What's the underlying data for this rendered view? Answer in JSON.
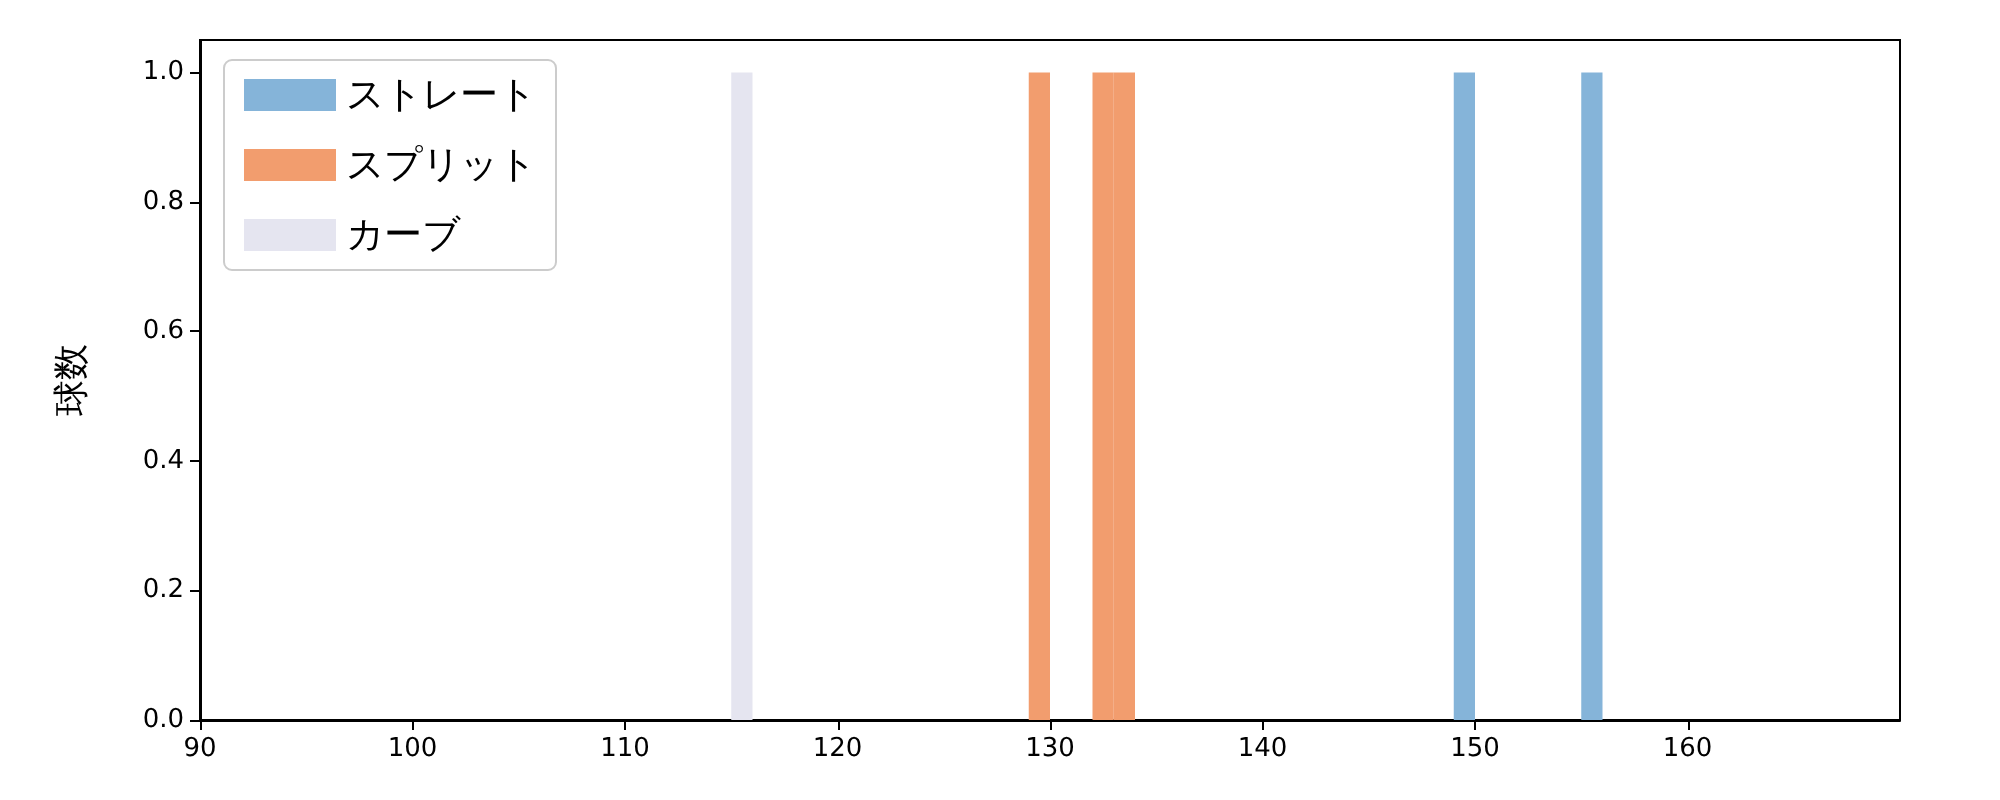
{
  "chart_data": {
    "type": "histogram",
    "ylabel": "球数",
    "bins": [
      115,
      116,
      117,
      118,
      119,
      120,
      121,
      122,
      123,
      124,
      125,
      126,
      127,
      128,
      129,
      130,
      131,
      132,
      133,
      134,
      135,
      136,
      137,
      138,
      139,
      140,
      141,
      142,
      143,
      144,
      145,
      146,
      147,
      148,
      149,
      150,
      151,
      152,
      153,
      154,
      155,
      156
    ],
    "series": [
      {
        "name": "ストレート",
        "color": "#85b4d9",
        "values": [
          0,
          0,
          0,
          0,
          0,
          0,
          0,
          0,
          0,
          0,
          0,
          0,
          0,
          0,
          0,
          0,
          0,
          0,
          0,
          0,
          0,
          0,
          0,
          0,
          0,
          0,
          0,
          0,
          0,
          0,
          0,
          0,
          0,
          0,
          1,
          0,
          0,
          0,
          0,
          0,
          1
        ]
      },
      {
        "name": "スプリット",
        "color": "#f29d6e",
        "values": [
          0,
          0,
          0,
          0,
          0,
          0,
          0,
          0,
          0,
          0,
          0,
          0,
          0,
          0,
          1,
          0,
          0,
          1,
          1,
          0,
          0,
          0,
          0,
          0,
          0,
          0,
          0,
          0,
          0,
          0,
          0,
          0,
          0,
          0,
          0,
          0,
          0,
          0,
          0,
          0,
          0
        ]
      },
      {
        "name": "カーブ",
        "color": "#e5e5f0",
        "values": [
          1,
          0,
          0,
          0,
          0,
          0,
          0,
          0,
          0,
          0,
          0,
          0,
          0,
          0,
          0,
          0,
          0,
          0,
          0,
          0,
          0,
          0,
          0,
          0,
          0,
          0,
          0,
          0,
          0,
          0,
          0,
          0,
          0,
          0,
          0,
          0,
          0,
          0,
          0,
          0,
          0
        ]
      }
    ],
    "xlim": [
      90,
      170
    ],
    "xticks": [
      90,
      100,
      110,
      120,
      130,
      140,
      150,
      160
    ],
    "ylim": [
      0,
      1.05
    ],
    "yticks": [
      {
        "value": 0,
        "label": "0.0"
      },
      {
        "value": 0.2,
        "label": "0.2"
      },
      {
        "value": 0.4,
        "label": "0.4"
      },
      {
        "value": 0.6,
        "label": "0.6"
      },
      {
        "value": 0.8,
        "label": "0.8"
      },
      {
        "value": 1,
        "label": "1.0"
      }
    ],
    "grid": false,
    "legend": "top left"
  }
}
